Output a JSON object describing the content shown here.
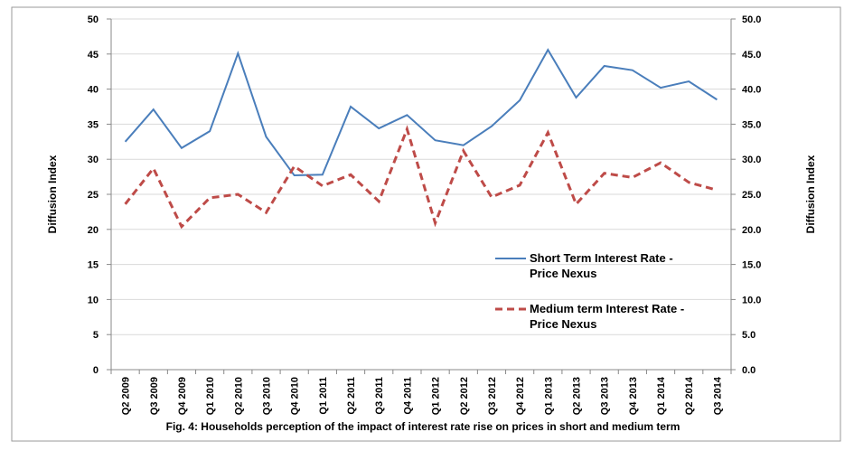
{
  "chart_data": {
    "type": "line",
    "title": "Fig. 4:  Households  perception of the impact of interest rate rise on prices in short and medium term",
    "y_label": "Diffusion Index",
    "y2_label": "Diffusion Index",
    "categories": [
      "Q2 2009",
      "Q3 2009",
      "Q4 2009",
      "Q1 2010",
      "Q2 2010",
      "Q3 2010",
      "Q4 2010",
      "Q1 2011",
      "Q2 2011",
      "Q3 2011",
      "Q4 2011",
      "Q1 2012",
      "Q2 2012",
      "Q3 2012",
      "Q4 2012",
      "Q1 2013",
      "Q2 2013",
      "Q3 2013",
      "Q4 2013",
      "Q1 2014",
      "Q2 2014",
      "Q3 2014"
    ],
    "series": [
      {
        "name": "Short Term Interest Rate - Price Nexus",
        "color": "#4a7ebb",
        "dash": false,
        "values": [
          32.5,
          37.1,
          31.6,
          34.0,
          45.1,
          33.2,
          27.7,
          27.8,
          37.5,
          34.4,
          36.3,
          32.7,
          32.0,
          34.7,
          38.4,
          45.6,
          38.8,
          43.3,
          42.7,
          40.2,
          41.1,
          38.5
        ]
      },
      {
        "name": "Medium  term Interest Rate - Price Nexus",
        "color": "#be4b48",
        "dash": true,
        "axis": "y2",
        "values": [
          23.6,
          28.7,
          20.4,
          24.5,
          25.0,
          22.4,
          29.0,
          26.2,
          27.8,
          24.0,
          34.3,
          20.9,
          31.2,
          24.6,
          26.3,
          33.8,
          23.6,
          28.0,
          27.4,
          29.5,
          26.7,
          25.6
        ]
      }
    ],
    "ylim": [
      0,
      50
    ],
    "yticks": [
      0,
      5,
      10,
      15,
      20,
      25,
      30,
      35,
      40,
      45,
      50
    ],
    "y2lim": [
      0,
      50
    ],
    "y2ticks": [
      {
        "value": 0,
        "label": "0.0"
      },
      {
        "value": 5,
        "label": "5.0"
      },
      {
        "value": 10,
        "label": "10.0"
      },
      {
        "value": 15,
        "label": "15.0"
      },
      {
        "value": 20,
        "label": "20.0"
      },
      {
        "value": 25,
        "label": "25.0"
      },
      {
        "value": 30,
        "label": "30.0"
      },
      {
        "value": 35,
        "label": "35.0"
      },
      {
        "value": 40,
        "label": "40.0"
      },
      {
        "value": 45,
        "label": "45.0"
      },
      {
        "value": 50,
        "label": "50.0"
      }
    ],
    "grid": true
  }
}
